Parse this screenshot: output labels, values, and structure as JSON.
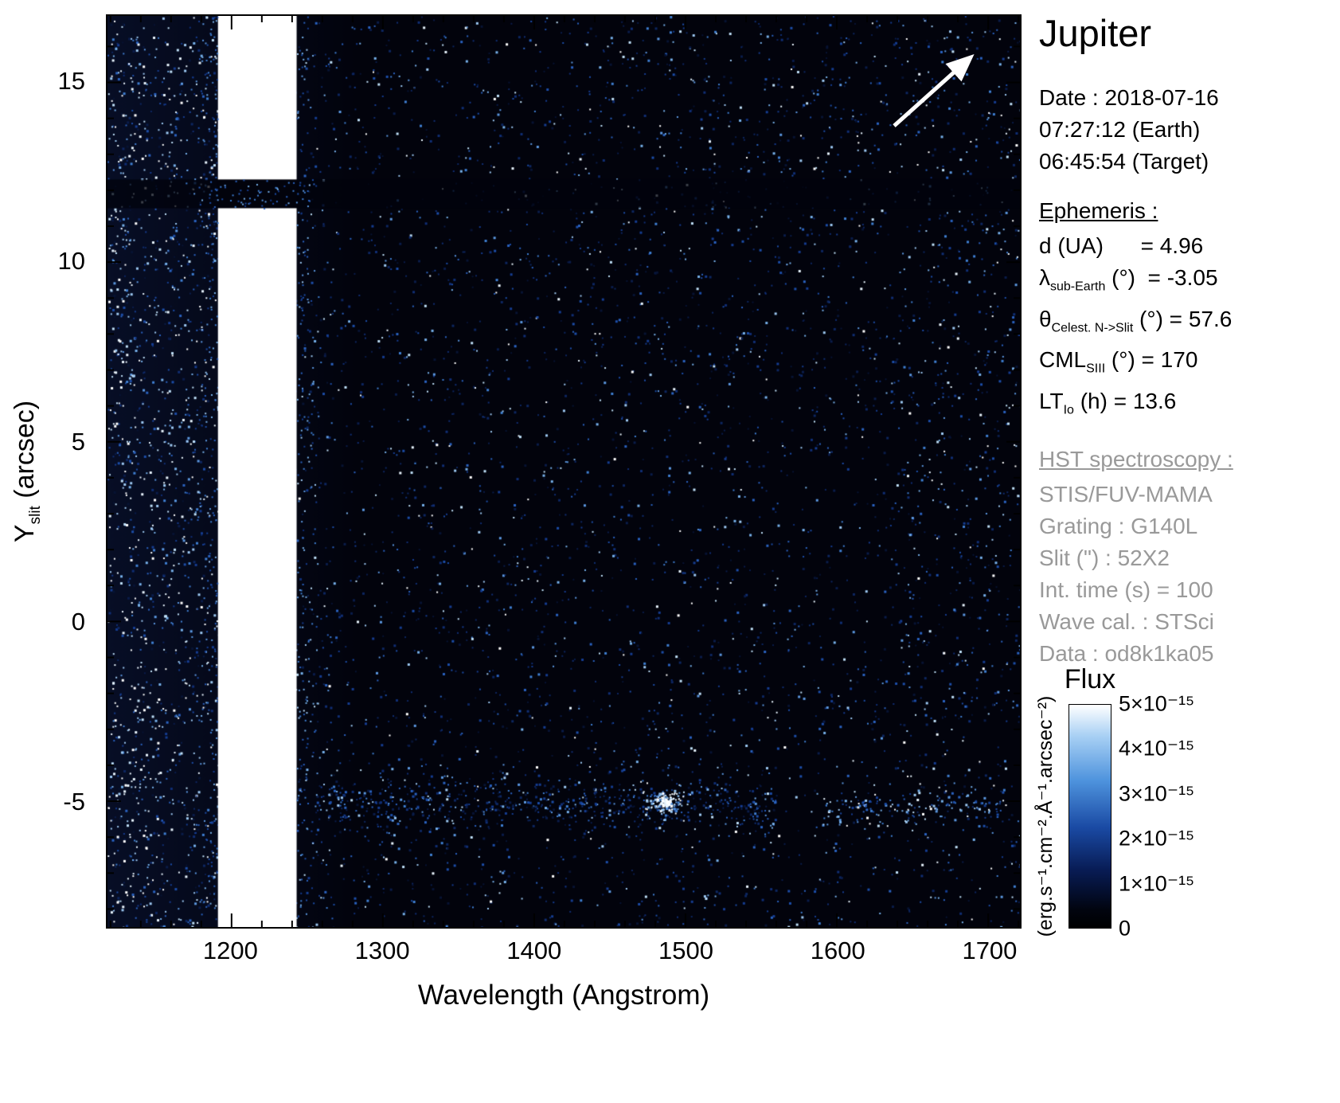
{
  "title": "Jupiter",
  "date_block": {
    "line1": "Date : 2018-07-16",
    "line2": "07:27:12 (Earth)",
    "line3": "06:45:54 (Target)"
  },
  "ephemeris": {
    "heading": "Ephemeris :",
    "rows": [
      {
        "pre": "d (UA)",
        "sub": "",
        "post": "      = 4.96"
      },
      {
        "pre": "λ",
        "sub": "sub-Earth",
        "post": " (°)  = -3.05"
      },
      {
        "pre": "θ",
        "sub": "Celest. N->Slit",
        "post": " (°) = 57.6"
      },
      {
        "pre": "CML",
        "sub": "SIII",
        "post": " (°) = 170"
      },
      {
        "pre": "LT",
        "sub": "Io",
        "post": " (h) = 13.6"
      }
    ]
  },
  "hst": {
    "heading": "HST spectroscopy :",
    "rows": [
      "STIS/FUV-MAMA",
      "Grating : G140L",
      "Slit (\") : 52X2",
      "Int. time (s) = 100",
      "Wave cal. : STSci",
      "Data : od8k1ka05"
    ]
  },
  "axes": {
    "y_pre": "Y",
    "y_sub": "slit",
    "y_post": " (arcsec)",
    "x_label": "Wavelength (Angstrom)"
  },
  "colorbar": {
    "title": "Flux",
    "unit_label": "(erg.s⁻¹.cm⁻².Å⁻¹.arcsec⁻²)",
    "tick_labels": [
      "5×10⁻¹⁵",
      "4×10⁻¹⁵",
      "3×10⁻¹⁵",
      "2×10⁻¹⁵",
      "1×10⁻¹⁵",
      "0"
    ],
    "gradient": [
      "#ffffff",
      "#a8d0f4",
      "#4e93dd",
      "#1a4aa4",
      "#081c55",
      "#01040f",
      "#000000"
    ]
  },
  "chart_data": {
    "type": "heatmap",
    "title": "Jupiter",
    "xlabel": "Wavelength (Angstrom)",
    "ylabel": "Y_slit (arcsec)",
    "xlim": [
      1118,
      1721
    ],
    "ylim": [
      -8.5,
      16.85
    ],
    "x_major_ticks": [
      1200,
      1300,
      1400,
      1500,
      1600,
      1700
    ],
    "x_minor_step": 20,
    "y_major_ticks": [
      15,
      10,
      5,
      0,
      -5
    ],
    "y_minor_step": 1,
    "flux_min": 0,
    "flux_max": 5e-15,
    "flux_units": "erg.s-1.cm-2.A-1.arcsec-2",
    "features": [
      {
        "name": "detector-background-speckle",
        "kind": "sparse-speckle",
        "x_range": [
          1118,
          1721
        ],
        "y_range": [
          -8.5,
          16.85
        ],
        "dots": 5200
      },
      {
        "name": "short-wavelength-airglow-speckle",
        "kind": "dense-speckle",
        "x_range": [
          1118,
          1191
        ],
        "dots": 760
      },
      {
        "name": "geocoronal-lyman-alpha-band",
        "kind": "saturated-vertical-band",
        "x_range": [
          1191,
          1243
        ],
        "gap_y_range": [
          11.5,
          12.3
        ],
        "level": "saturated-white"
      },
      {
        "name": "fiducial-bar-shadow",
        "kind": "horizontal-dark-lane",
        "y_range": [
          11.5,
          12.3
        ]
      },
      {
        "name": "disk-limb-emission-band",
        "kind": "horizontal-speckle-band",
        "x_range": [
          1255,
          1560
        ],
        "y_center": -5.05,
        "y_sigma": 0.35,
        "dots": 650
      },
      {
        "name": "bright-emission-cluster",
        "kind": "bright-cluster",
        "x_center": 1487,
        "y_center": -5.0,
        "x_sigma": 5,
        "y_sigma": 0.15,
        "dots": 130
      },
      {
        "name": "long-wavelength-emission-cluster",
        "kind": "speckle-cluster",
        "x_range": [
          1590,
          1710
        ],
        "y_center": -5.2,
        "y_sigma": 0.3,
        "dots": 160
      },
      {
        "name": "long-wavelength-edge-speckle",
        "kind": "sparse-speckle",
        "x_range": [
          1640,
          1721
        ],
        "dots": 180
      }
    ],
    "annotations": [
      {
        "name": "north-arrow",
        "kind": "arrow",
        "position": "top-right",
        "direction": "north-east"
      }
    ]
  }
}
